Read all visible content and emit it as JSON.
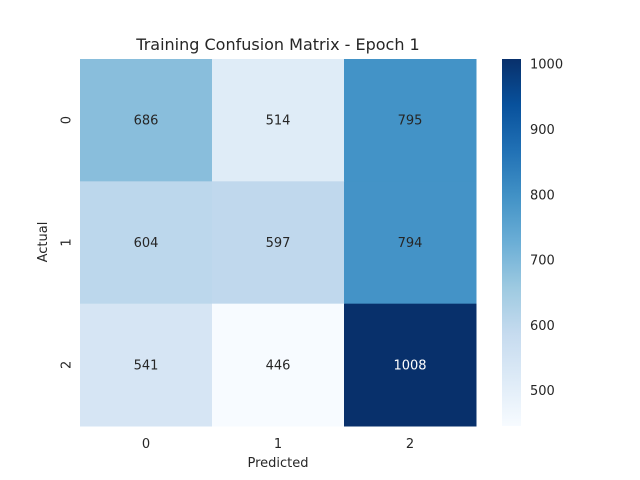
{
  "chart_data": {
    "type": "heatmap",
    "title": "Training Confusion Matrix - Epoch 1",
    "xlabel": "Predicted",
    "ylabel": "Actual",
    "x_categories": [
      "0",
      "1",
      "2"
    ],
    "y_categories": [
      "0",
      "1",
      "2"
    ],
    "values": [
      [
        686,
        514,
        795
      ],
      [
        604,
        597,
        794
      ],
      [
        541,
        446,
        1008
      ]
    ],
    "colorbar": {
      "min": 446,
      "max": 1008,
      "ticks": [
        500,
        600,
        700,
        800,
        900,
        1000
      ]
    },
    "colormap": "Blues",
    "colormap_stops": [
      "#f7fbff",
      "#deebf7",
      "#c6dbef",
      "#9ecae1",
      "#6baed6",
      "#4292c6",
      "#2171b5",
      "#08519c",
      "#08306b"
    ],
    "annotation_dark_color": "#262626",
    "annotation_light_color": "#ffffff"
  }
}
